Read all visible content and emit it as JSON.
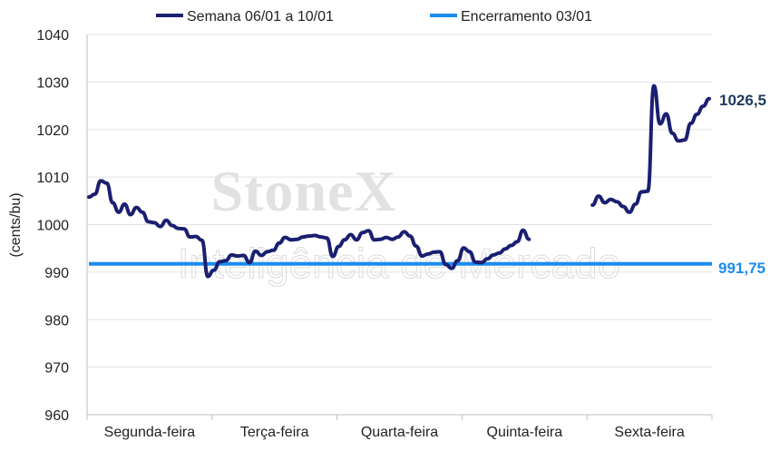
{
  "chart_data": {
    "type": "line",
    "ylabel": "(cents/bu)",
    "ylim": [
      960,
      1040
    ],
    "yticks": [
      "960",
      "970",
      "980",
      "990",
      "1000",
      "1010",
      "1020",
      "1030",
      "1040"
    ],
    "categories": [
      "Segunda-feira",
      "Terça-feira",
      "Quarta-feira",
      "Quinta-feira",
      "Sexta-feira"
    ],
    "grid": true,
    "legend_position": "top",
    "watermark": {
      "brand": "StoneX",
      "tagline": "Inteligência de Mercado"
    },
    "series": [
      {
        "name": "Semana 06/01 a 10/01",
        "color": "#1a1f71",
        "end_label": "1026,5",
        "segments": [
          [
            1005.8,
            1006.4,
            1009.2,
            1008.7,
            1004.6,
            1002.6,
            1004.3,
            1002.1,
            1003.6,
            1002.6,
            1000.6,
            1000.4,
            999.6,
            1000.9,
            999.8,
            999.2,
            999.1,
            997.4,
            997.5,
            996.7,
            989.1,
            990.4,
            992.2,
            992.4,
            993.6,
            993.4,
            993.5,
            992.0,
            994.4,
            993.5,
            994.3,
            994.6,
            996.1,
            997.3,
            996.8,
            996.9,
            997.4,
            997.6,
            997.7,
            997.4,
            997.2,
            993.3,
            995.4,
            996.8,
            997.9,
            996.8,
            998.3,
            998.7,
            996.8,
            996.9,
            997.3,
            996.9,
            997.4,
            998.5,
            997.6,
            995.5,
            993.4,
            993.8,
            994.2,
            994.3,
            991.6,
            990.8,
            992.4,
            995.1,
            994.3,
            992.1,
            992.0,
            992.8,
            993.6,
            994.0,
            994.9,
            995.6,
            996.4,
            998.8,
            996.9
          ],
          [
            1004.1,
            1006.0,
            1004.6,
            1005.3,
            1004.8,
            1003.8,
            1002.6,
            1004.3,
            1006.9,
            1007.0,
            1029.2,
            1021.2,
            1023.3,
            1019.2,
            1017.6,
            1017.8,
            1021.3,
            1023.2,
            1024.9,
            1026.5
          ]
        ]
      },
      {
        "name": "Encerramento 03/01",
        "color": "#1a8cf0",
        "end_label": "991,75",
        "value": 991.75
      }
    ]
  }
}
